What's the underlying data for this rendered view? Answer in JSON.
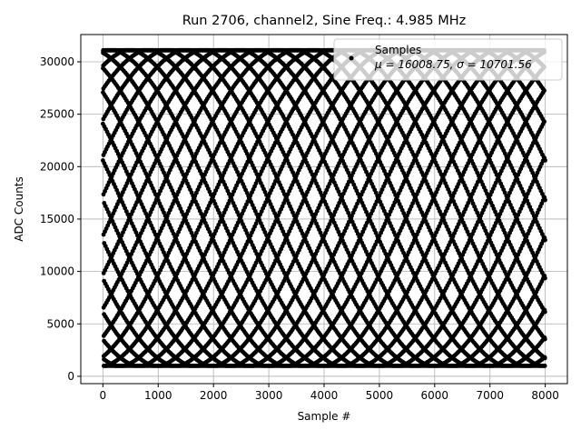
{
  "chart_data": {
    "type": "scatter",
    "title": "Run 2706, channel2, Sine Freq.: 4.985 MHz",
    "xlabel": "Sample #",
    "ylabel": "ADC Counts",
    "xlim": [
      -400,
      8400
    ],
    "ylim": [
      -700,
      32600
    ],
    "xticks": [
      0,
      1000,
      2000,
      3000,
      4000,
      5000,
      6000,
      7000,
      8000
    ],
    "yticks": [
      0,
      5000,
      10000,
      15000,
      20000,
      25000,
      30000
    ],
    "grid": true,
    "legend_placement": "top-right",
    "series": [
      {
        "name": "Samples",
        "marker": "circle",
        "color": "#000000",
        "sample_count": 8000,
        "y_min": 1000,
        "y_max": 31100,
        "sine_freq_mhz": 4.985
      }
    ],
    "legend": {
      "label": "Samples",
      "stats": "μ = 16008.75, σ = 10701.56"
    }
  }
}
